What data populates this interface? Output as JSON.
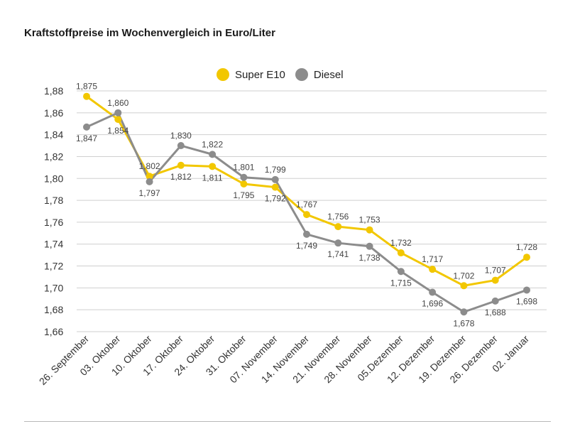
{
  "title": "Kraftstoffpreise im Wochenvergleich in Euro/Liter",
  "chart_data": {
    "type": "line",
    "title": "Kraftstoffpreise im Wochenvergleich in Euro/Liter",
    "categories": [
      "26. September",
      "03. Oktober",
      "10. Oktober",
      "17. Oktober",
      "24. Oktober",
      "31. Oktober",
      "07. November",
      "14. November",
      "21. November",
      "28. November",
      "05.Dezember",
      "12. Dezember",
      "19. Dezember",
      "26. Dezember",
      "02. Januar"
    ],
    "series": [
      {
        "name": "Super E10",
        "color": "#f2c700",
        "values": [
          1.875,
          1.854,
          1.802,
          1.812,
          1.811,
          1.795,
          1.792,
          1.767,
          1.756,
          1.753,
          1.732,
          1.717,
          1.702,
          1.707,
          1.728
        ],
        "labels": [
          "1,875",
          "1,854",
          "1,802",
          "1,812",
          "1,811",
          "1,795",
          "1,792",
          "1,767",
          "1,756",
          "1,753",
          "1,732",
          "1,717",
          "1,702",
          "1,707",
          "1,728"
        ]
      },
      {
        "name": "Diesel",
        "color": "#8c8c8c",
        "values": [
          1.847,
          1.86,
          1.797,
          1.83,
          1.822,
          1.801,
          1.799,
          1.749,
          1.741,
          1.738,
          1.715,
          1.696,
          1.678,
          1.688,
          1.698
        ],
        "labels": [
          "1,847",
          "1,860",
          "1,797",
          "1,830",
          "1,822",
          "1,801",
          "1,799",
          "1,749",
          "1,741",
          "1,738",
          "1,715",
          "1,696",
          "1,678",
          "1,688",
          "1,698"
        ]
      }
    ],
    "y_ticks": [
      1.66,
      1.68,
      1.7,
      1.72,
      1.74,
      1.76,
      1.78,
      1.8,
      1.82,
      1.84,
      1.86,
      1.88
    ],
    "y_tick_labels": [
      "1,66",
      "1,68",
      "1,70",
      "1,72",
      "1,74",
      "1,76",
      "1,78",
      "1,80",
      "1,82",
      "1,84",
      "1,86",
      "1,88"
    ],
    "ylim": [
      1.66,
      1.88
    ],
    "grid": true,
    "legend_position": "top-center"
  }
}
